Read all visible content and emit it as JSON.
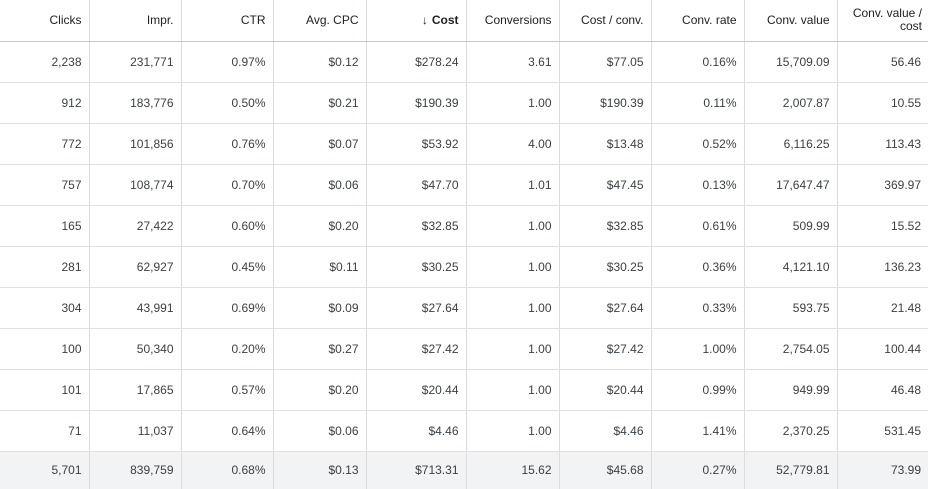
{
  "columns": [
    {
      "label": "Clicks",
      "sorted": false
    },
    {
      "label": "Impr.",
      "sorted": false
    },
    {
      "label": "CTR",
      "sorted": false
    },
    {
      "label": "Avg. CPC",
      "sorted": false
    },
    {
      "label": "Cost",
      "sorted": true,
      "sort_icon": "arrow-down-icon",
      "sort_glyph": "↓"
    },
    {
      "label": "Conversions",
      "sorted": false
    },
    {
      "label": "Cost / conv.",
      "sorted": false
    },
    {
      "label": "Conv. rate",
      "sorted": false
    },
    {
      "label": "Conv. value",
      "sorted": false
    },
    {
      "label": "Conv. value / cost",
      "sorted": false
    }
  ],
  "rows": [
    [
      "2,238",
      "231,771",
      "0.97%",
      "$0.12",
      "$278.24",
      "3.61",
      "$77.05",
      "0.16%",
      "15,709.09",
      "56.46"
    ],
    [
      "912",
      "183,776",
      "0.50%",
      "$0.21",
      "$190.39",
      "1.00",
      "$190.39",
      "0.11%",
      "2,007.87",
      "10.55"
    ],
    [
      "772",
      "101,856",
      "0.76%",
      "$0.07",
      "$53.92",
      "4.00",
      "$13.48",
      "0.52%",
      "6,116.25",
      "113.43"
    ],
    [
      "757",
      "108,774",
      "0.70%",
      "$0.06",
      "$47.70",
      "1.01",
      "$47.45",
      "0.13%",
      "17,647.47",
      "369.97"
    ],
    [
      "165",
      "27,422",
      "0.60%",
      "$0.20",
      "$32.85",
      "1.00",
      "$32.85",
      "0.61%",
      "509.99",
      "15.52"
    ],
    [
      "281",
      "62,927",
      "0.45%",
      "$0.11",
      "$30.25",
      "1.00",
      "$30.25",
      "0.36%",
      "4,121.10",
      "136.23"
    ],
    [
      "304",
      "43,991",
      "0.69%",
      "$0.09",
      "$27.64",
      "1.00",
      "$27.64",
      "0.33%",
      "593.75",
      "21.48"
    ],
    [
      "100",
      "50,340",
      "0.20%",
      "$0.27",
      "$27.42",
      "1.00",
      "$27.42",
      "1.00%",
      "2,754.05",
      "100.44"
    ],
    [
      "101",
      "17,865",
      "0.57%",
      "$0.20",
      "$20.44",
      "1.00",
      "$20.44",
      "0.99%",
      "949.99",
      "46.48"
    ],
    [
      "71",
      "11,037",
      "0.64%",
      "$0.06",
      "$4.46",
      "1.00",
      "$4.46",
      "1.41%",
      "2,370.25",
      "531.45"
    ]
  ],
  "totals": [
    "5,701",
    "839,759",
    "0.68%",
    "$0.13",
    "$713.31",
    "15.62",
    "$45.68",
    "0.27%",
    "52,779.81",
    "73.99"
  ],
  "colors": {
    "header_text": "#202124",
    "cell_text": "#3c4043",
    "grid_line": "#dadce0",
    "total_row_bg": "#f1f3f4"
  }
}
